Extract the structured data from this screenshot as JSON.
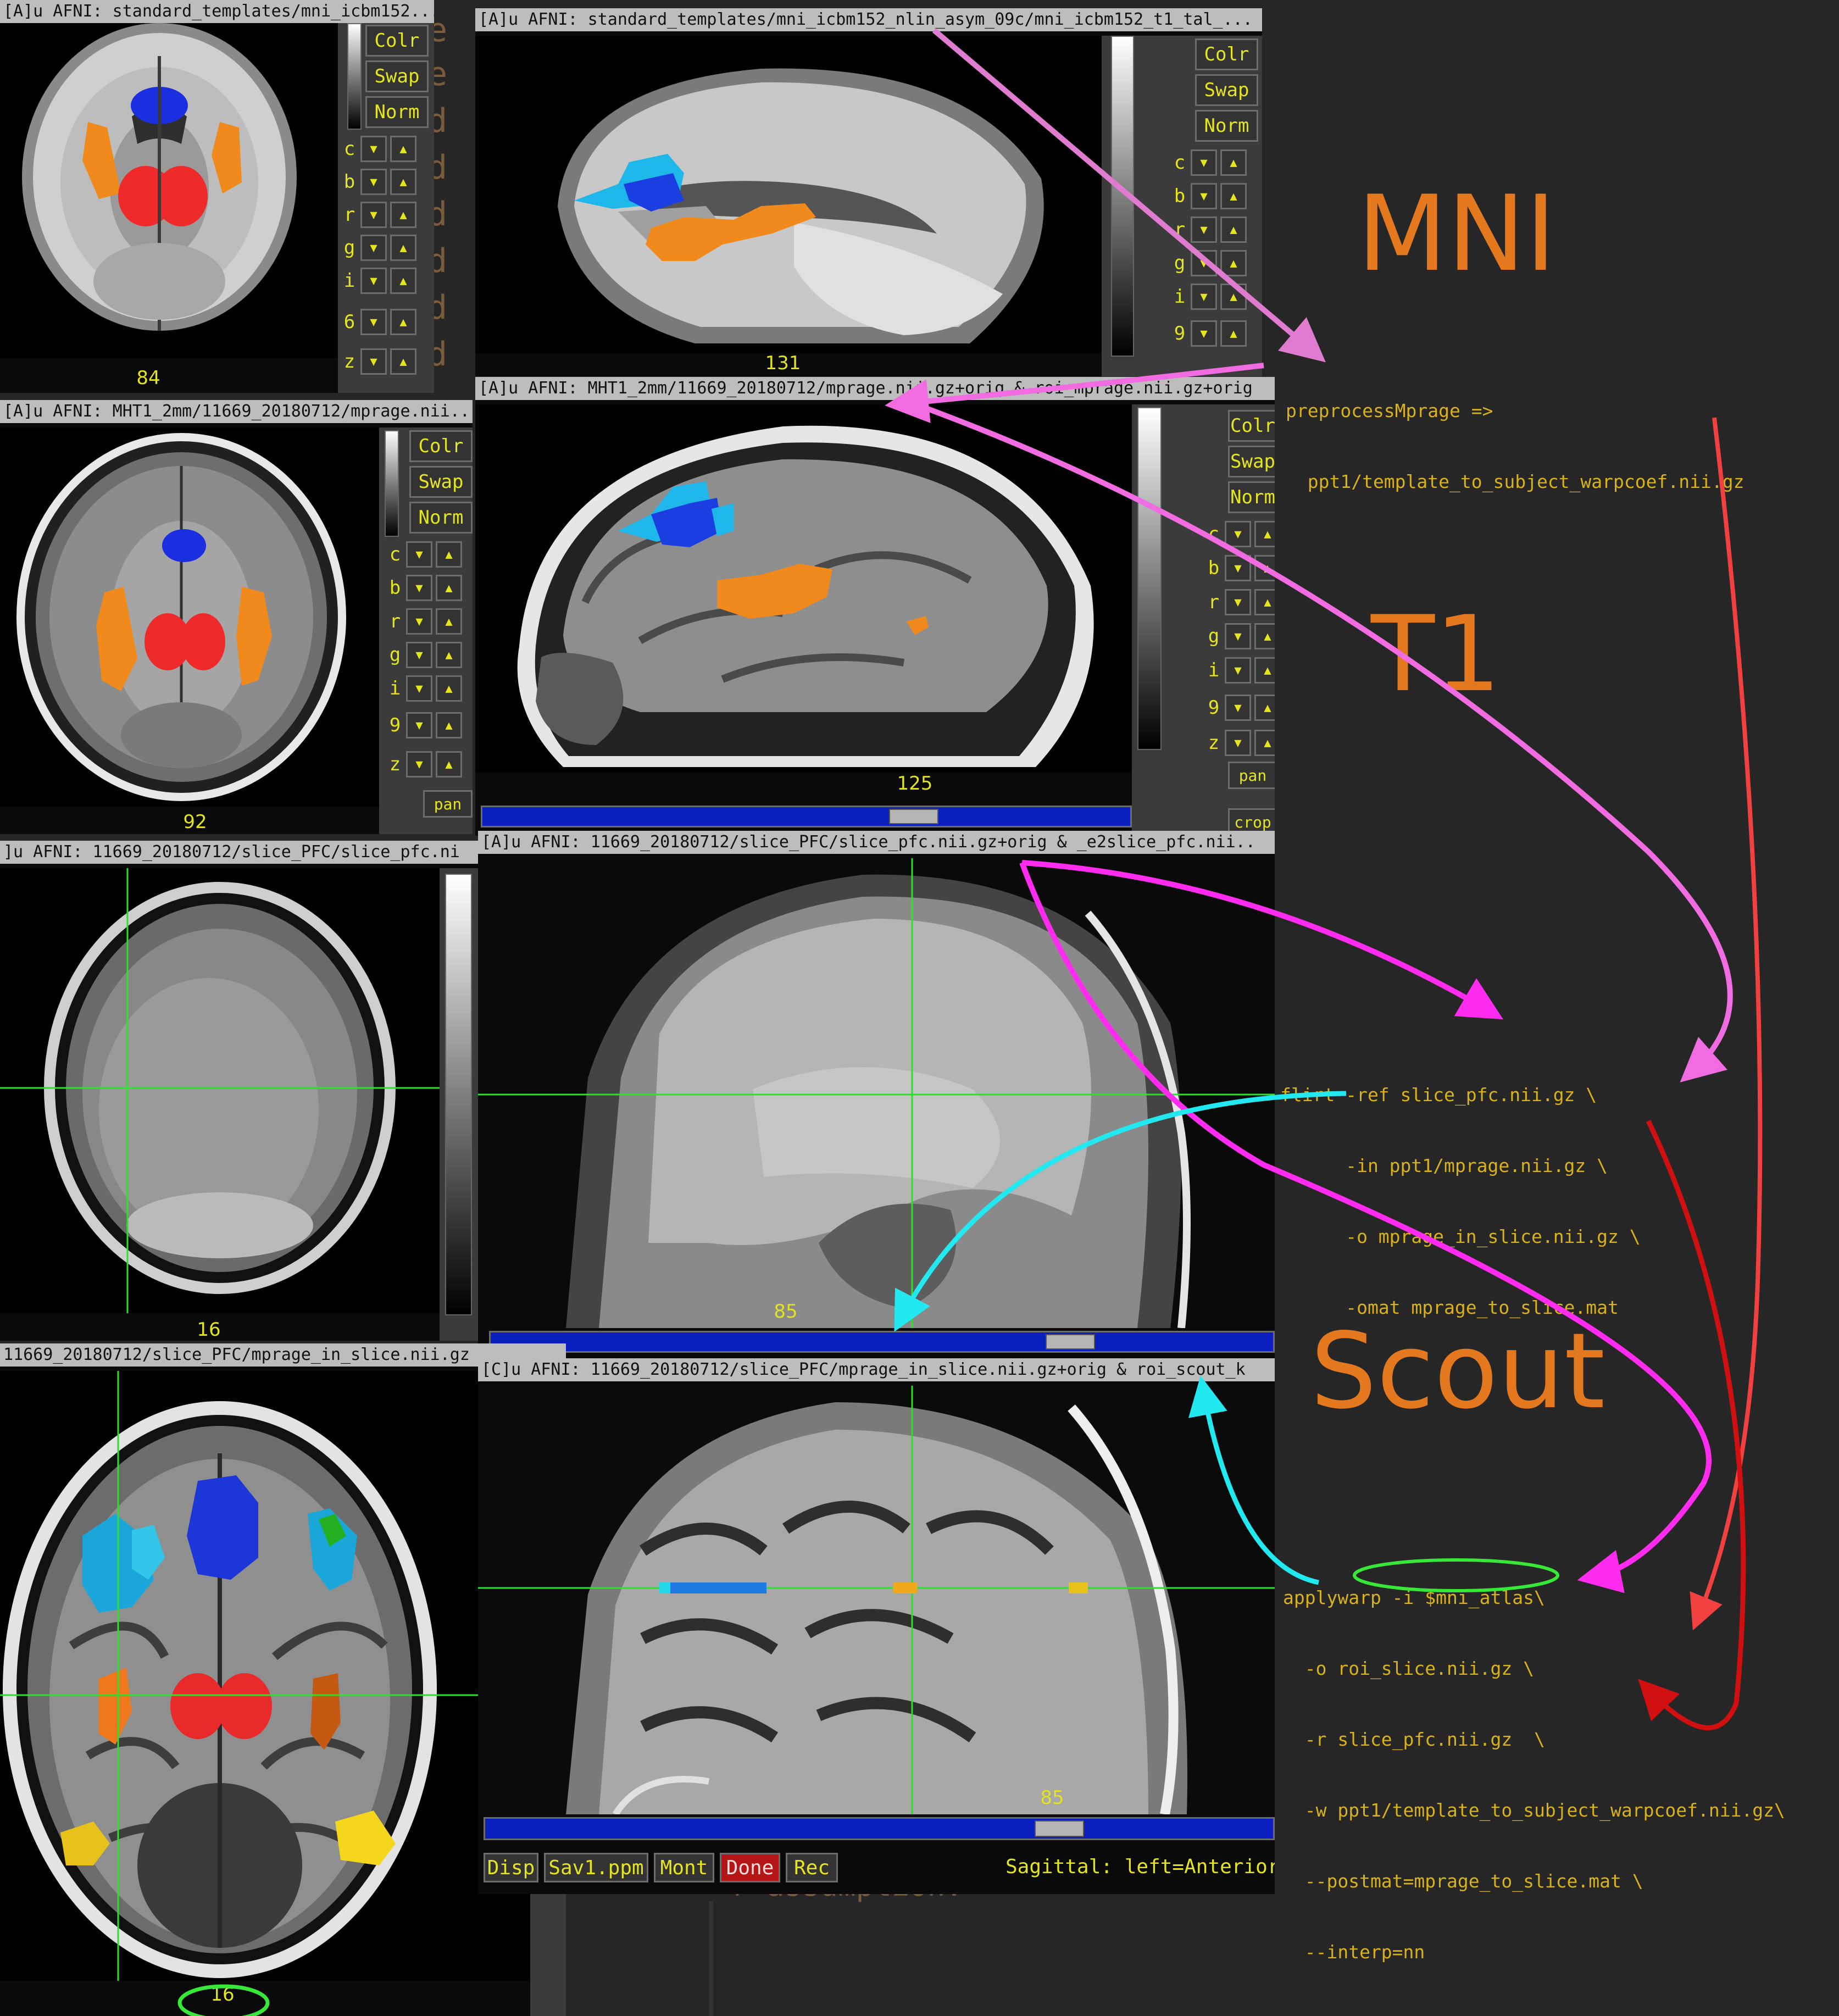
{
  "colors": {
    "accent_orange": "#e4781e",
    "code_yellow": "#d9b21a",
    "ui_yellow": "#e5e51e",
    "arrow_magenta": "#ff2cf0",
    "arrow_pink": "#f06ce0",
    "arrow_red": "#e02020",
    "arrow_cyan": "#22e8f0",
    "ellipse_green": "#38e838"
  },
  "windows": [
    {
      "title": "[A]u AFNI: standard_templates/mni_icbm152...",
      "slice": "84"
    },
    {
      "title": "[A]u AFNI: standard_templates/mni_icbm152_nlin_asym_09c/mni_icbm152_t1_tal_...",
      "slice": "131"
    },
    {
      "title": "[A]u AFNI: MHT1_2mm/11669_20180712/mprage.nii...",
      "slice": "92"
    },
    {
      "title": "[A]u AFNI: MHT1_2mm/11669_20180712/mprage.nii.gz+orig & roi_mprage.nii.gz+orig",
      "slice": "125"
    },
    {
      "title": "]u AFNI: 11669_20180712/slice_PFC/slice_pfc.ni",
      "slice": "16"
    },
    {
      "title": "[A]u AFNI: 11669_20180712/slice_PFC/slice_pfc.nii.gz+orig & _e2slice_pfc.nii..",
      "slice": "85"
    },
    {
      "title": " 11669_20180712/slice_PFC/mprage_in_slice.nii.gz",
      "slice": "16"
    },
    {
      "title": "[C]u AFNI: 11669_20180712/slice_PFC/mprage_in_slice.nii.gz+orig & roi_scout_k",
      "slice": "85"
    }
  ],
  "controls": {
    "colr": "Colr",
    "swap": "Swap",
    "norm": "Norm",
    "row_labels": [
      "c",
      "b",
      "r",
      "g",
      "i",
      "6",
      "z"
    ],
    "row_labels_b": [
      "c",
      "b",
      "r",
      "g",
      "i",
      "9",
      "z"
    ],
    "pan": "pan",
    "crop": "crop"
  },
  "bottom_buttons": {
    "disp": "Disp",
    "sav": "Sav1.ppm",
    "mont": "Mont",
    "done": "Done",
    "rec": "Rec",
    "status": "Sagittal: left=Anterior"
  },
  "labels": {
    "mni": "MNI",
    "t1": "T1",
    "scout": "Scout"
  },
  "code": {
    "preprocess": [
      "preprocessMprage =>",
      "  ppt1/template_to_subject_warpcoef.nii.gz"
    ],
    "flirt": [
      "flirt -ref slice_pfc.nii.gz \\",
      "      -in ppt1/mprage.nii.gz \\",
      "      -o mprage_in_slice.nii.gz \\",
      "      -omat mprage_to_slice.mat"
    ],
    "applywarp": [
      "applywarp -i $mni_atlas\\",
      "  -o roi_slice.nii.gz \\",
      "  -r slice_pfc.nii.gz  \\",
      "  -w ppt1/template_to_subject_warpcoef.nii.gz\\",
      "  --postmat=mprage_to_slice.mat \\",
      "  --interp=nn"
    ]
  },
  "terminal_fragments": [
    "e",
    "e",
    "d",
    "d",
    "d",
    "d",
    "d",
    "d",
    "d"
  ],
  "terminal_bottom": "r assumption."
}
